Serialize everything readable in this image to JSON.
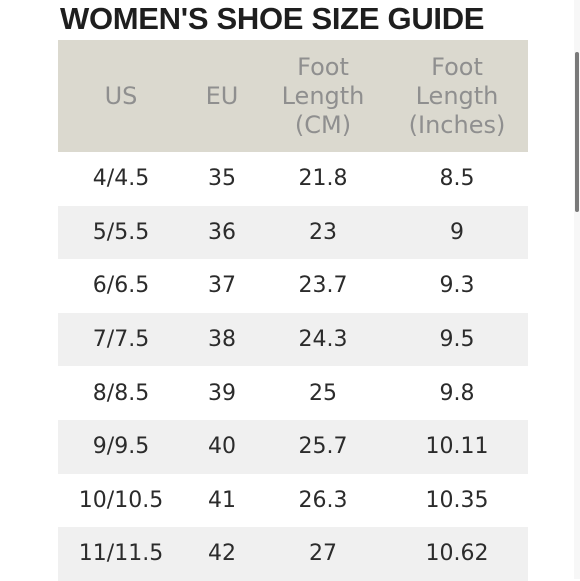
{
  "title": "WOMEN'S SHOE SIZE GUIDE",
  "headers": {
    "us": "US",
    "eu": "EU",
    "cm_line1": "Foot",
    "cm_line2": "Length",
    "cm_line3": "(CM)",
    "in_line1": "Foot",
    "in_line2": "Length",
    "in_line3": "(Inches)"
  },
  "rows": [
    {
      "us": "4/4.5",
      "eu": "35",
      "cm": "21.8",
      "in": "8.5"
    },
    {
      "us": "5/5.5",
      "eu": "36",
      "cm": "23",
      "in": "9"
    },
    {
      "us": "6/6.5",
      "eu": "37",
      "cm": "23.7",
      "in": "9.3"
    },
    {
      "us": "7/7.5",
      "eu": "38",
      "cm": "24.3",
      "in": "9.5"
    },
    {
      "us": "8/8.5",
      "eu": "39",
      "cm": "25",
      "in": "9.8"
    },
    {
      "us": "9/9.5",
      "eu": "40",
      "cm": "25.7",
      "in": "10.11"
    },
    {
      "us": "10/10.5",
      "eu": "41",
      "cm": "26.3",
      "in": "10.35"
    },
    {
      "us": "11/11.5",
      "eu": "42",
      "cm": "27",
      "in": "10.62"
    }
  ],
  "colors": {
    "header_bg": "#dbd9cf",
    "header_text": "#8f8f8f",
    "stripe_bg": "#f0f0f0",
    "body_text": "#2b2b2b"
  }
}
